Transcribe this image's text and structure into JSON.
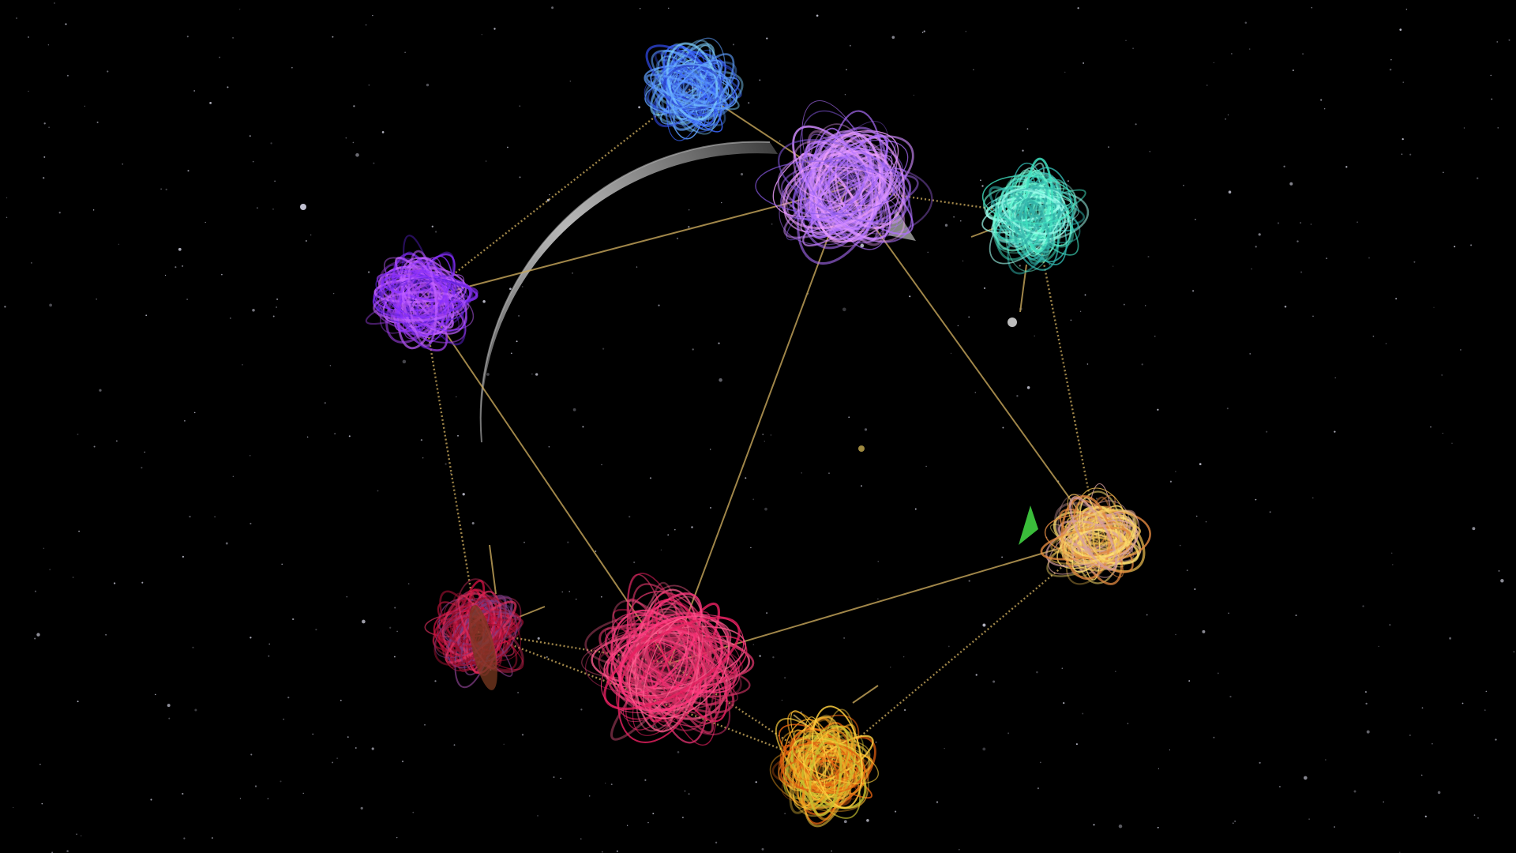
{
  "scene": {
    "background_color": "#000000",
    "link_color": "#c9a85c",
    "planet_color": "#9a9a9a",
    "star_color": "#d8d8e8",
    "cluster_colors": {
      "blue-top": [
        "#3a66ff",
        "#5fa0ff",
        "#2a40c8",
        "#7fd0ff"
      ],
      "violet-center": [
        "#b070ff",
        "#d08cff",
        "#8a5ae8",
        "#f0a0ff"
      ],
      "teal-right": [
        "#40e0c0",
        "#70ffd8",
        "#30b0a8",
        "#a0fff0"
      ],
      "purple-left": [
        "#8a30ff",
        "#a040e8",
        "#5a20d0",
        "#c060ff"
      ],
      "yellow-right": [
        "#f0c050",
        "#e08840",
        "#ffe070",
        "#d8a0a0"
      ],
      "pink-bottom": [
        "#ff3a80",
        "#e82060",
        "#ff6090",
        "#c83060"
      ],
      "crimson-left": [
        "#d01040",
        "#e03060",
        "#9a1030",
        "#7a3a80"
      ],
      "orange-bottom": [
        "#f0a020",
        "#e06010",
        "#ffd040",
        "#c8c030"
      ]
    },
    "shard_colors": {
      "green": "#40d040",
      "grey": "#bdbdbd"
    }
  }
}
